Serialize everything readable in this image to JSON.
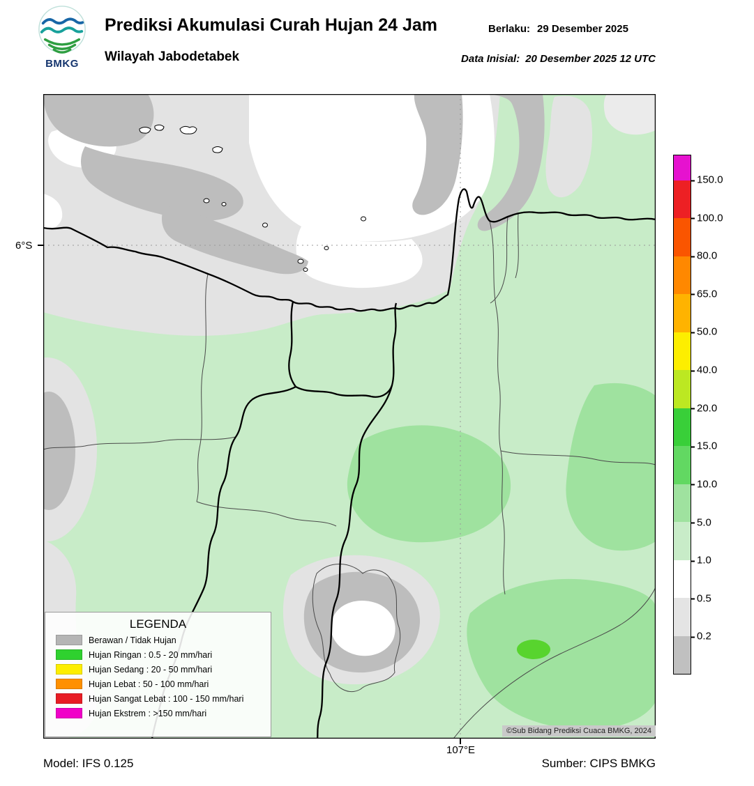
{
  "header": {
    "logo_text": "BMKG",
    "title": "Prediksi Akumulasi Curah Hujan 24 Jam",
    "berlaku_label": "Berlaku:",
    "berlaku_value": "29 Desember 2025",
    "wilayah": "Wilayah Jabodetabek",
    "inisial_label": "Data Inisial:",
    "inisial_value": "20 Desember 2025 12 UTC"
  },
  "map": {
    "lat_tick": "6°S",
    "lon_tick": "107°E",
    "copyright": "©Sub Bidang Prediksi Cuaca BMKG, 2024"
  },
  "legend": {
    "title": "LEGENDA",
    "items": [
      {
        "label": "Berawan / Tidak Hujan",
        "color": "#b5b5b5"
      },
      {
        "label": "Hujan Ringan : 0.5 - 20 mm/hari",
        "color": "#2fd12f"
      },
      {
        "label": "Hujan Sedang : 20 - 50 mm/hari",
        "color": "#fdee00"
      },
      {
        "label": "Hujan Lebat : 50 - 100 mm/hari",
        "color": "#ff9000"
      },
      {
        "label": "Hujan Sangat Lebat : 100 - 150 mm/hari",
        "color": "#e81c24"
      },
      {
        "label": "Hujan Ekstrem : >150 mm/hari",
        "color": "#f000c8"
      }
    ]
  },
  "colorbar": {
    "ticks": [
      "150.0",
      "100.0",
      "80.0",
      "65.0",
      "50.0",
      "40.0",
      "20.0",
      "15.0",
      "10.0",
      "5.0",
      "1.0",
      "0.5",
      "0.2"
    ],
    "segment_colors_top_to_bottom": [
      "#e612cf",
      "#ed2024",
      "#fa5500",
      "#ff8800",
      "#ffb300",
      "#fdee00",
      "#bce822",
      "#39cf39",
      "#62d862",
      "#9fe29f",
      "#c8ecc8",
      "#ffffff",
      "#e4e4e4",
      "#c0c0c0"
    ]
  },
  "map_colors": {
    "background_rain_light": "#c8ecc8",
    "rain_medium": "#9fe29f",
    "rain_bright": "#58d42e",
    "cloud_light_gray": "#e3e3e3",
    "cloud_dark_gray": "#bdbdbd",
    "no_data_white": "#ffffff"
  },
  "footer": {
    "model": "Model: IFS 0.125",
    "source": "Sumber: CIPS BMKG"
  }
}
